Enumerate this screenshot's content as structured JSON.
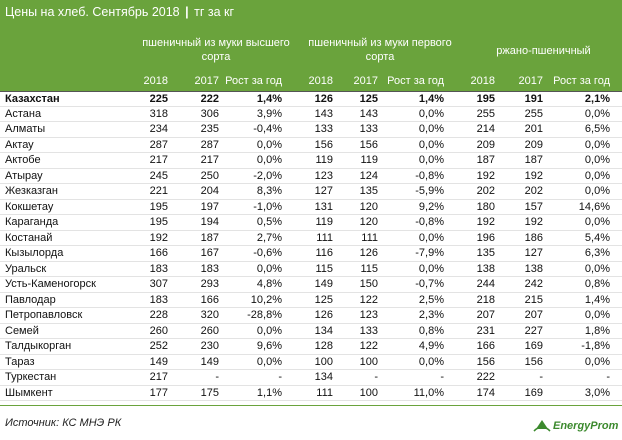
{
  "title": {
    "main": "Цены на хлеб. Сентябрь 2018",
    "separator": "|",
    "units": "тг за кг"
  },
  "chart_data": {
    "type": "table",
    "title": "Цены на хлеб. Сентябрь 2018",
    "units": "тг за кг",
    "groups": [
      {
        "label": "пшеничный из муки высшего сорта",
        "columns": [
          "2018",
          "2017",
          "Рост за год"
        ]
      },
      {
        "label": "пшеничный из муки первого сорта",
        "columns": [
          "2018",
          "2017",
          "Рост за год"
        ]
      },
      {
        "label": "ржано-пшеничный",
        "columns": [
          "2018",
          "2017",
          "Рост за год"
        ]
      }
    ],
    "rows": [
      {
        "city": "Казахстан",
        "values": [
          "225",
          "222",
          "1,4%",
          "126",
          "125",
          "1,4%",
          "195",
          "191",
          "2,1%"
        ],
        "bold": true
      },
      {
        "city": "Астана",
        "values": [
          "318",
          "306",
          "3,9%",
          "143",
          "143",
          "0,0%",
          "255",
          "255",
          "0,0%"
        ]
      },
      {
        "city": "Алматы",
        "values": [
          "234",
          "235",
          "-0,4%",
          "133",
          "133",
          "0,0%",
          "214",
          "201",
          "6,5%"
        ]
      },
      {
        "city": "Актау",
        "values": [
          "287",
          "287",
          "0,0%",
          "156",
          "156",
          "0,0%",
          "209",
          "209",
          "0,0%"
        ]
      },
      {
        "city": "Актобе",
        "values": [
          "217",
          "217",
          "0,0%",
          "119",
          "119",
          "0,0%",
          "187",
          "187",
          "0,0%"
        ]
      },
      {
        "city": "Атырау",
        "values": [
          "245",
          "250",
          "-2,0%",
          "123",
          "124",
          "-0,8%",
          "192",
          "192",
          "0,0%"
        ]
      },
      {
        "city": "Жезказган",
        "values": [
          "221",
          "204",
          "8,3%",
          "127",
          "135",
          "-5,9%",
          "202",
          "202",
          "0,0%"
        ]
      },
      {
        "city": "Кокшетау",
        "values": [
          "195",
          "197",
          "-1,0%",
          "131",
          "120",
          "9,2%",
          "180",
          "157",
          "14,6%"
        ]
      },
      {
        "city": "Караганда",
        "values": [
          "195",
          "194",
          "0,5%",
          "119",
          "120",
          "-0,8%",
          "192",
          "192",
          "0,0%"
        ]
      },
      {
        "city": "Костанай",
        "values": [
          "192",
          "187",
          "2,7%",
          "111",
          "111",
          "0,0%",
          "196",
          "186",
          "5,4%"
        ]
      },
      {
        "city": "Кызылорда",
        "values": [
          "166",
          "167",
          "-0,6%",
          "116",
          "126",
          "-7,9%",
          "135",
          "127",
          "6,3%"
        ]
      },
      {
        "city": "Уральск",
        "values": [
          "183",
          "183",
          "0,0%",
          "115",
          "115",
          "0,0%",
          "138",
          "138",
          "0,0%"
        ]
      },
      {
        "city": "Усть-Каменогорск",
        "values": [
          "307",
          "293",
          "4,8%",
          "149",
          "150",
          "-0,7%",
          "244",
          "242",
          "0,8%"
        ]
      },
      {
        "city": "Павлодар",
        "values": [
          "183",
          "166",
          "10,2%",
          "125",
          "122",
          "2,5%",
          "218",
          "215",
          "1,4%"
        ]
      },
      {
        "city": "Петропавловск",
        "values": [
          "228",
          "320",
          "-28,8%",
          "126",
          "123",
          "2,3%",
          "207",
          "207",
          "0,0%"
        ]
      },
      {
        "city": "Семей",
        "values": [
          "260",
          "260",
          "0,0%",
          "134",
          "133",
          "0,8%",
          "231",
          "227",
          "1,8%"
        ]
      },
      {
        "city": "Талдыкорган",
        "values": [
          "252",
          "230",
          "9,6%",
          "128",
          "122",
          "4,9%",
          "166",
          "169",
          "-1,8%"
        ]
      },
      {
        "city": "Тараз",
        "values": [
          "149",
          "149",
          "0,0%",
          "100",
          "100",
          "0,0%",
          "156",
          "156",
          "0,0%"
        ]
      },
      {
        "city": "Туркестан",
        "values": [
          "217",
          "-",
          "-",
          "134",
          "-",
          "-",
          "222",
          "-",
          "-"
        ]
      },
      {
        "city": "Шымкент",
        "values": [
          "177",
          "175",
          "1,1%",
          "111",
          "100",
          "11,0%",
          "174",
          "169",
          "3,0%"
        ]
      }
    ]
  },
  "footer": {
    "source": "Источник: КС МНЭ РК",
    "logo_text": "EnergyProm"
  },
  "colors": {
    "header_green": "#6aa33c",
    "logo_green": "#3c8a2e"
  }
}
